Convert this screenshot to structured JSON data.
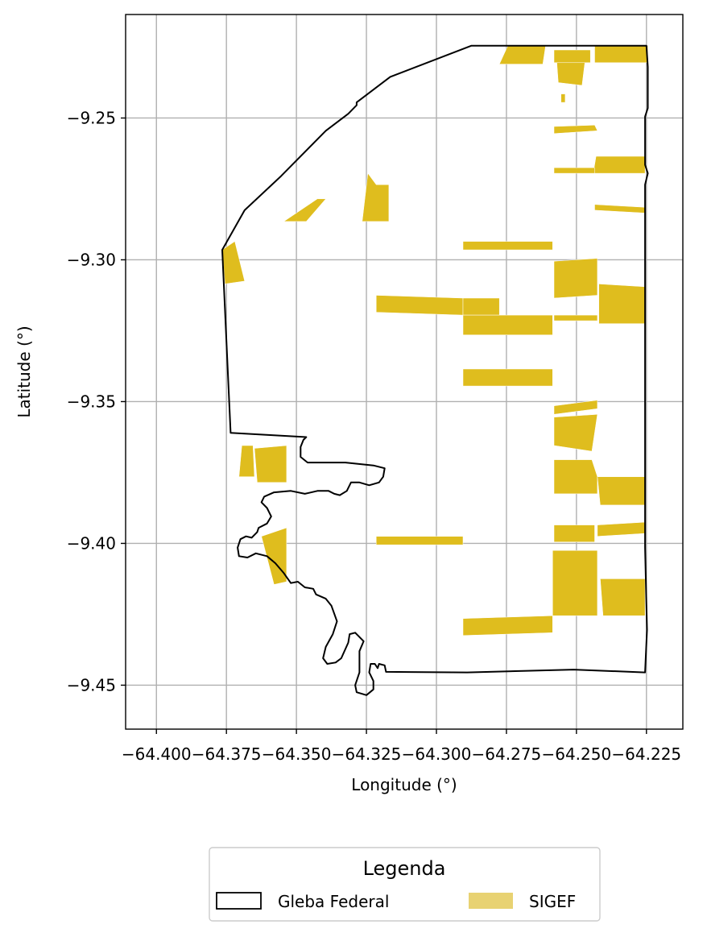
{
  "chart_data": {
    "type": "map",
    "xlabel": "Longitude (°)",
    "ylabel": "Latitude (°)",
    "xlim": [
      -64.411,
      -64.212
    ],
    "ylim": [
      -9.4655,
      -9.2135
    ],
    "x_ticks": [
      -64.4,
      -64.375,
      -64.35,
      -64.325,
      -64.3,
      -64.275,
      -64.25,
      -64.225
    ],
    "x_tick_labels": [
      "−64.400",
      "−64.375",
      "−64.350",
      "−64.325",
      "−64.300",
      "−64.275",
      "−64.250",
      "−64.225"
    ],
    "y_ticks": [
      -9.25,
      -9.3,
      -9.35,
      -9.4,
      -9.45
    ],
    "y_tick_labels": [
      "−9.25",
      "−9.30",
      "−9.35",
      "−9.40",
      "−9.45"
    ],
    "grid": true,
    "legend": {
      "title": "Legenda",
      "placement": "bottom-center, outside plot",
      "entries": [
        {
          "label": "Gleba Federal",
          "style": "outline",
          "color": "#000000"
        },
        {
          "label": "SIGEF",
          "style": "fill",
          "color": "#e8d272"
        }
      ]
    },
    "colors": {
      "gleba_outline": "#000000",
      "sigef_fill": "#dfbd1e",
      "sigef_legend": "#e8d272",
      "grid": "#b0b0b0"
    },
    "gleba_federal": [
      [
        -64.276,
        -9.2245
      ],
      [
        -64.225,
        -9.2245
      ],
      [
        -64.2245,
        -9.232
      ],
      [
        -64.2245,
        -9.2465
      ],
      [
        -64.2255,
        -9.2495
      ],
      [
        -64.2255,
        -9.2665
      ],
      [
        -64.2245,
        -9.2695
      ],
      [
        -64.2255,
        -9.2735
      ],
      [
        -64.2255,
        -9.4015
      ],
      [
        -64.2248,
        -9.4305
      ],
      [
        -64.2255,
        -9.4455
      ],
      [
        -64.251,
        -9.4445
      ],
      [
        -64.289,
        -9.4455
      ],
      [
        -64.318,
        -9.4453
      ],
      [
        -64.3185,
        -9.443
      ],
      [
        -64.3205,
        -9.4425
      ],
      [
        -64.321,
        -9.444
      ],
      [
        -64.322,
        -9.4425
      ],
      [
        -64.3235,
        -9.4425
      ],
      [
        -64.324,
        -9.4455
      ],
      [
        -64.3225,
        -9.4485
      ],
      [
        -64.3225,
        -9.4515
      ],
      [
        -64.325,
        -9.4535
      ],
      [
        -64.3285,
        -9.4525
      ],
      [
        -64.329,
        -9.45
      ],
      [
        -64.3275,
        -9.4455
      ],
      [
        -64.3275,
        -9.438
      ],
      [
        -64.326,
        -9.4345
      ],
      [
        -64.329,
        -9.4315
      ],
      [
        -64.331,
        -9.432
      ],
      [
        -64.3315,
        -9.435
      ],
      [
        -64.334,
        -9.4405
      ],
      [
        -64.336,
        -9.442
      ],
      [
        -64.339,
        -9.4425
      ],
      [
        -64.3405,
        -9.4405
      ],
      [
        -64.3395,
        -9.4365
      ],
      [
        -64.337,
        -9.432
      ],
      [
        -64.3355,
        -9.4275
      ],
      [
        -64.3375,
        -9.422
      ],
      [
        -64.3395,
        -9.4195
      ],
      [
        -64.343,
        -9.418
      ],
      [
        -64.344,
        -9.416
      ],
      [
        -64.347,
        -9.4155
      ],
      [
        -64.3495,
        -9.4135
      ],
      [
        -64.352,
        -9.414
      ],
      [
        -64.3545,
        -9.4105
      ],
      [
        -64.3575,
        -9.407
      ],
      [
        -64.3605,
        -9.4045
      ],
      [
        -64.3645,
        -9.4035
      ],
      [
        -64.3675,
        -9.405
      ],
      [
        -64.3705,
        -9.4045
      ],
      [
        -64.371,
        -9.4015
      ],
      [
        -64.37,
        -9.3985
      ],
      [
        -64.368,
        -9.3975
      ],
      [
        -64.366,
        -9.398
      ],
      [
        -64.364,
        -9.396
      ],
      [
        -64.3635,
        -9.3945
      ],
      [
        -64.3605,
        -9.393
      ],
      [
        -64.359,
        -9.3905
      ],
      [
        -64.3605,
        -9.3875
      ],
      [
        -64.3625,
        -9.3855
      ],
      [
        -64.3615,
        -9.3835
      ],
      [
        -64.358,
        -9.382
      ],
      [
        -64.352,
        -9.3815
      ],
      [
        -64.347,
        -9.3825
      ],
      [
        -64.3425,
        -9.3815
      ],
      [
        -64.3385,
        -9.3815
      ],
      [
        -64.3365,
        -9.3825
      ],
      [
        -64.3345,
        -9.383
      ],
      [
        -64.332,
        -9.3815
      ],
      [
        -64.3305,
        -9.3785
      ],
      [
        -64.3275,
        -9.3785
      ],
      [
        -64.324,
        -9.3795
      ],
      [
        -64.3205,
        -9.3785
      ],
      [
        -64.319,
        -9.3765
      ],
      [
        -64.3185,
        -9.3735
      ],
      [
        -64.3225,
        -9.3725
      ],
      [
        -64.3325,
        -9.3715
      ],
      [
        -64.346,
        -9.3715
      ],
      [
        -64.3485,
        -9.3695
      ],
      [
        -64.3485,
        -9.366
      ],
      [
        -64.3475,
        -9.3635
      ],
      [
        -64.3465,
        -9.3625
      ],
      [
        -64.3735,
        -9.361
      ],
      [
        -64.3765,
        -9.2965
      ],
      [
        -64.3685,
        -9.2825
      ],
      [
        -64.3555,
        -9.2705
      ],
      [
        -64.3395,
        -9.2545
      ],
      [
        -64.3315,
        -9.2485
      ],
      [
        -64.3285,
        -9.2455
      ],
      [
        -64.3285,
        -9.2445
      ],
      [
        -64.3165,
        -9.2355
      ],
      [
        -64.2875,
        -9.2245
      ],
      [
        -64.276,
        -9.2245
      ]
    ],
    "sigef_parcels": [
      [
        [
          -64.2745,
          -9.2245
        ],
        [
          -64.261,
          -9.2245
        ],
        [
          -64.262,
          -9.231
        ],
        [
          -64.2775,
          -9.231
        ]
      ],
      [
        [
          -64.258,
          -9.226
        ],
        [
          -64.245,
          -9.226
        ],
        [
          -64.245,
          -9.2305
        ],
        [
          -64.258,
          -9.2305
        ]
      ],
      [
        [
          -64.257,
          -9.2305
        ],
        [
          -64.247,
          -9.2305
        ],
        [
          -64.248,
          -9.2385
        ],
        [
          -64.2565,
          -9.2375
        ]
      ],
      [
        [
          -64.2435,
          -9.2245
        ],
        [
          -64.2245,
          -9.2245
        ],
        [
          -64.2245,
          -9.2305
        ],
        [
          -64.2435,
          -9.2305
        ]
      ],
      [
        [
          -64.2555,
          -9.2415
        ],
        [
          -64.254,
          -9.2415
        ],
        [
          -64.254,
          -9.2445
        ],
        [
          -64.2555,
          -9.2445
        ]
      ],
      [
        [
          -64.258,
          -9.253
        ],
        [
          -64.2435,
          -9.2525
        ],
        [
          -64.2425,
          -9.2545
        ],
        [
          -64.258,
          -9.2555
        ]
      ],
      [
        [
          -64.243,
          -9.2635
        ],
        [
          -64.2255,
          -9.2635
        ],
        [
          -64.2255,
          -9.2695
        ],
        [
          -64.244,
          -9.2695
        ]
      ],
      [
        [
          -64.258,
          -9.2675
        ],
        [
          -64.2435,
          -9.2675
        ],
        [
          -64.2435,
          -9.2695
        ],
        [
          -64.258,
          -9.2695
        ]
      ],
      [
        [
          -64.2435,
          -9.2805
        ],
        [
          -64.2255,
          -9.2815
        ],
        [
          -64.2255,
          -9.2835
        ],
        [
          -64.2435,
          -9.2825
        ]
      ],
      [
        [
          -64.3245,
          -9.2695
        ],
        [
          -64.3215,
          -9.2735
        ],
        [
          -64.317,
          -9.2735
        ],
        [
          -64.317,
          -9.2865
        ],
        [
          -64.3265,
          -9.2865
        ]
      ],
      [
        [
          -64.3425,
          -9.2785
        ],
        [
          -64.3395,
          -9.2785
        ],
        [
          -64.3465,
          -9.2865
        ],
        [
          -64.3545,
          -9.2865
        ]
      ],
      [
        [
          -64.3765,
          -9.2965
        ],
        [
          -64.372,
          -9.2935
        ],
        [
          -64.3685,
          -9.3075
        ],
        [
          -64.3755,
          -9.3085
        ]
      ],
      [
        [
          -64.2905,
          -9.2935
        ],
        [
          -64.2585,
          -9.2935
        ],
        [
          -64.2585,
          -9.2965
        ],
        [
          -64.2905,
          -9.2965
        ]
      ],
      [
        [
          -64.258,
          -9.3005
        ],
        [
          -64.2425,
          -9.2995
        ],
        [
          -64.2425,
          -9.3125
        ],
        [
          -64.258,
          -9.3135
        ]
      ],
      [
        [
          -64.242,
          -9.3085
        ],
        [
          -64.2255,
          -9.3095
        ],
        [
          -64.2255,
          -9.3225
        ],
        [
          -64.242,
          -9.3225
        ]
      ],
      [
        [
          -64.3215,
          -9.3125
        ],
        [
          -64.2905,
          -9.3135
        ],
        [
          -64.2905,
          -9.3195
        ],
        [
          -64.3215,
          -9.3185
        ]
      ],
      [
        [
          -64.2905,
          -9.3135
        ],
        [
          -64.2775,
          -9.3135
        ],
        [
          -64.2775,
          -9.3195
        ],
        [
          -64.2905,
          -9.3195
        ]
      ],
      [
        [
          -64.2905,
          -9.3195
        ],
        [
          -64.2585,
          -9.3195
        ],
        [
          -64.2585,
          -9.3265
        ],
        [
          -64.2905,
          -9.3265
        ]
      ],
      [
        [
          -64.258,
          -9.3195
        ],
        [
          -64.2425,
          -9.3195
        ],
        [
          -64.2425,
          -9.3215
        ],
        [
          -64.258,
          -9.3215
        ]
      ],
      [
        [
          -64.2905,
          -9.3385
        ],
        [
          -64.2585,
          -9.3385
        ],
        [
          -64.2585,
          -9.3445
        ],
        [
          -64.2905,
          -9.3445
        ]
      ],
      [
        [
          -64.258,
          -9.3515
        ],
        [
          -64.2425,
          -9.3495
        ],
        [
          -64.2425,
          -9.3525
        ],
        [
          -64.258,
          -9.3545
        ]
      ],
      [
        [
          -64.258,
          -9.3555
        ],
        [
          -64.2425,
          -9.3545
        ],
        [
          -64.2445,
          -9.3675
        ],
        [
          -64.258,
          -9.3655
        ]
      ],
      [
        [
          -64.258,
          -9.3705
        ],
        [
          -64.2445,
          -9.3705
        ],
        [
          -64.2425,
          -9.3765
        ],
        [
          -64.2425,
          -9.3825
        ],
        [
          -64.258,
          -9.3825
        ]
      ],
      [
        [
          -64.2425,
          -9.3765
        ],
        [
          -64.2255,
          -9.3765
        ],
        [
          -64.2255,
          -9.3865
        ],
        [
          -64.2415,
          -9.3865
        ]
      ],
      [
        [
          -64.3695,
          -9.3655
        ],
        [
          -64.3655,
          -9.3655
        ],
        [
          -64.365,
          -9.3765
        ],
        [
          -64.3705,
          -9.3765
        ]
      ],
      [
        [
          -64.365,
          -9.3665
        ],
        [
          -64.3535,
          -9.3655
        ],
        [
          -64.3535,
          -9.3785
        ],
        [
          -64.364,
          -9.3785
        ]
      ],
      [
        [
          -64.3535,
          -9.3945
        ],
        [
          -64.3625,
          -9.3975
        ],
        [
          -64.358,
          -9.4145
        ],
        [
          -64.3535,
          -9.4135
        ]
      ],
      [
        [
          -64.3215,
          -9.3975
        ],
        [
          -64.2905,
          -9.3975
        ],
        [
          -64.2905,
          -9.4005
        ],
        [
          -64.3215,
          -9.4005
        ]
      ],
      [
        [
          -64.258,
          -9.3935
        ],
        [
          -64.2435,
          -9.3935
        ],
        [
          -64.2435,
          -9.3995
        ],
        [
          -64.258,
          -9.3995
        ]
      ],
      [
        [
          -64.2425,
          -9.3935
        ],
        [
          -64.2255,
          -9.3925
        ],
        [
          -64.2255,
          -9.3965
        ],
        [
          -64.2425,
          -9.3975
        ]
      ],
      [
        [
          -64.2585,
          -9.4025
        ],
        [
          -64.2425,
          -9.4025
        ],
        [
          -64.2425,
          -9.4255
        ],
        [
          -64.2585,
          -9.4255
        ]
      ],
      [
        [
          -64.2415,
          -9.4125
        ],
        [
          -64.2255,
          -9.4125
        ],
        [
          -64.2255,
          -9.4255
        ],
        [
          -64.2405,
          -9.4255
        ]
      ],
      [
        [
          -64.2905,
          -9.4265
        ],
        [
          -64.2585,
          -9.4255
        ],
        [
          -64.2585,
          -9.4315
        ],
        [
          -64.2905,
          -9.4325
        ]
      ]
    ]
  }
}
